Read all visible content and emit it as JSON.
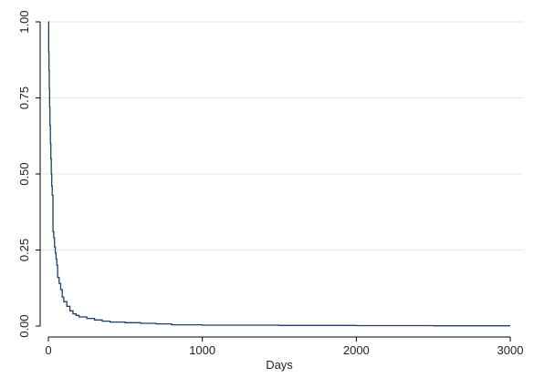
{
  "chart_data": {
    "type": "line",
    "title": "",
    "xlabel": "Days",
    "ylabel": "",
    "xlim": [
      0,
      3000
    ],
    "ylim": [
      0,
      1
    ],
    "x_ticks": [
      0,
      1000,
      2000,
      3000
    ],
    "x_tick_labels": [
      "0",
      "1000",
      "2000",
      "3000"
    ],
    "y_ticks": [
      0,
      0.25,
      0.5,
      0.75,
      1
    ],
    "y_tick_labels": [
      "0.00",
      "0.25",
      "0.50",
      "0.75",
      "1.00"
    ],
    "grid": "horizontal",
    "step": true,
    "line_color": "#1f3f66",
    "series": [
      {
        "x": [
          0,
          2,
          4,
          6,
          8,
          10,
          13,
          16,
          19,
          22,
          25,
          30,
          35,
          40,
          45,
          50,
          55,
          60,
          70,
          80,
          90,
          100,
          120,
          140,
          160,
          180,
          200,
          250,
          300,
          350,
          400,
          500,
          600,
          700,
          800,
          1000,
          1500,
          2000,
          2500,
          3000
        ],
        "y": [
          1.0,
          0.9,
          0.84,
          0.78,
          0.72,
          0.66,
          0.6,
          0.55,
          0.5,
          0.46,
          0.43,
          0.31,
          0.29,
          0.26,
          0.24,
          0.22,
          0.2,
          0.16,
          0.14,
          0.12,
          0.095,
          0.08,
          0.065,
          0.05,
          0.04,
          0.035,
          0.03,
          0.025,
          0.02,
          0.016,
          0.013,
          0.011,
          0.009,
          0.007,
          0.004,
          0.003,
          0.002,
          0.0015,
          0.001,
          0.001
        ]
      }
    ]
  }
}
